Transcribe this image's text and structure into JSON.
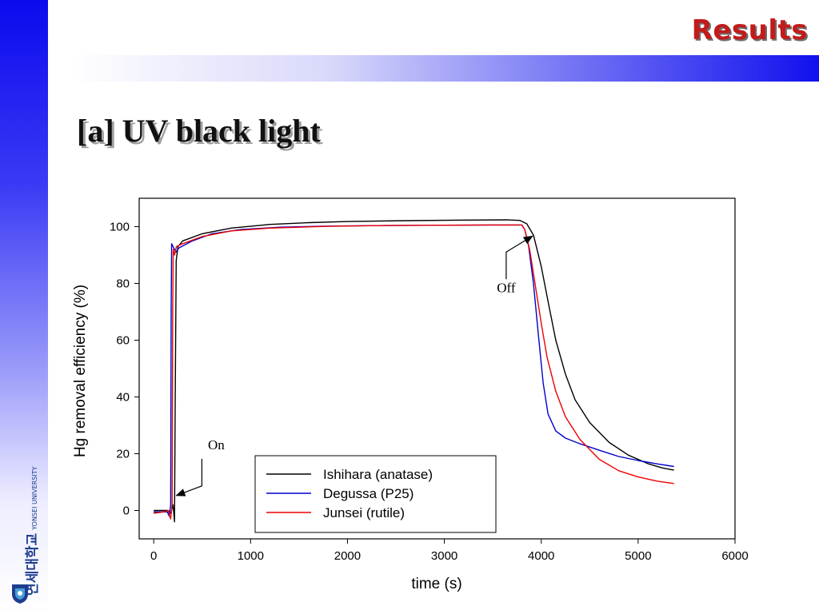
{
  "slide": {
    "section_title": "Results",
    "heading": "[a] UV black light",
    "logo": {
      "korean": "연세대학교",
      "english": "YONSEI UNIVERSITY",
      "colors": {
        "primary": "#1d3d8e",
        "accent": "#4aa0d8"
      }
    }
  },
  "colors": {
    "title_red": "#c21b1b",
    "bar_blue": "#1010ee"
  },
  "chart_data": {
    "type": "line",
    "xlabel": "time (s)",
    "ylabel": "Hg removal efficiency (%)",
    "xlim": [
      -150,
      6000
    ],
    "ylim": [
      -10,
      110
    ],
    "xticks": [
      0,
      1000,
      2000,
      3000,
      4000,
      5000,
      6000
    ],
    "yticks": [
      0,
      20,
      40,
      60,
      80,
      100
    ],
    "grid": false,
    "legend_position": "bottom-right",
    "series": [
      {
        "name": "Ishihara (anatase)",
        "color": "#000000",
        "points": [
          [
            0,
            0
          ],
          [
            150,
            0
          ],
          [
            175,
            -1
          ],
          [
            200,
            2
          ],
          [
            215,
            -4
          ],
          [
            222,
            40
          ],
          [
            232,
            88
          ],
          [
            250,
            93
          ],
          [
            300,
            95
          ],
          [
            500,
            97.5
          ],
          [
            800,
            99.5
          ],
          [
            1200,
            100.8
          ],
          [
            1600,
            101.4
          ],
          [
            2000,
            101.8
          ],
          [
            2600,
            102.1
          ],
          [
            3200,
            102.3
          ],
          [
            3650,
            102.4
          ],
          [
            3780,
            102.2
          ],
          [
            3850,
            101
          ],
          [
            3920,
            97
          ],
          [
            4000,
            86
          ],
          [
            4080,
            72
          ],
          [
            4150,
            60
          ],
          [
            4250,
            48
          ],
          [
            4350,
            39
          ],
          [
            4500,
            31
          ],
          [
            4700,
            24
          ],
          [
            4900,
            19.5
          ],
          [
            5100,
            16.5
          ],
          [
            5250,
            15
          ],
          [
            5370,
            14.2
          ]
        ]
      },
      {
        "name": "Degussa (P25)",
        "color": "#0000cc",
        "points": [
          [
            0,
            -0.5
          ],
          [
            140,
            -0.5
          ],
          [
            160,
            -2
          ],
          [
            175,
            2
          ],
          [
            180,
            70
          ],
          [
            185,
            94
          ],
          [
            200,
            93
          ],
          [
            230,
            91
          ],
          [
            260,
            92.5
          ],
          [
            400,
            95
          ],
          [
            600,
            97.5
          ],
          [
            900,
            99
          ],
          [
            1300,
            99.8
          ],
          [
            1800,
            100.2
          ],
          [
            2400,
            100.4
          ],
          [
            3000,
            100.5
          ],
          [
            3500,
            100.6
          ],
          [
            3800,
            100.6
          ],
          [
            3830,
            99
          ],
          [
            3870,
            93
          ],
          [
            3920,
            80
          ],
          [
            3970,
            62
          ],
          [
            4020,
            45
          ],
          [
            4070,
            34
          ],
          [
            4150,
            28
          ],
          [
            4250,
            25.5
          ],
          [
            4400,
            23.5
          ],
          [
            4600,
            21.2
          ],
          [
            4800,
            19
          ],
          [
            5000,
            17.6
          ],
          [
            5200,
            16.4
          ],
          [
            5370,
            15.5
          ]
        ]
      },
      {
        "name": "Junsei (rutile)",
        "color": "#ee0000",
        "points": [
          [
            0,
            -1
          ],
          [
            100,
            -0.5
          ],
          [
            150,
            0
          ],
          [
            175,
            -3
          ],
          [
            190,
            2
          ],
          [
            196,
            70
          ],
          [
            202,
            92
          ],
          [
            215,
            90
          ],
          [
            235,
            93
          ],
          [
            300,
            94
          ],
          [
            500,
            96.5
          ],
          [
            800,
            98.5
          ],
          [
            1200,
            99.5
          ],
          [
            1800,
            100.1
          ],
          [
            2400,
            100.4
          ],
          [
            3000,
            100.5
          ],
          [
            3500,
            100.6
          ],
          [
            3800,
            100.6
          ],
          [
            3830,
            99
          ],
          [
            3880,
            92
          ],
          [
            3940,
            79
          ],
          [
            4000,
            66
          ],
          [
            4060,
            54
          ],
          [
            4150,
            42
          ],
          [
            4250,
            33
          ],
          [
            4400,
            25
          ],
          [
            4600,
            18
          ],
          [
            4800,
            14
          ],
          [
            5000,
            11.8
          ],
          [
            5200,
            10.3
          ],
          [
            5370,
            9.5
          ]
        ]
      }
    ],
    "annotations": [
      {
        "text": "On",
        "x": 200,
        "y": 3
      },
      {
        "text": "Off",
        "x": 3630,
        "y": 95
      }
    ]
  }
}
